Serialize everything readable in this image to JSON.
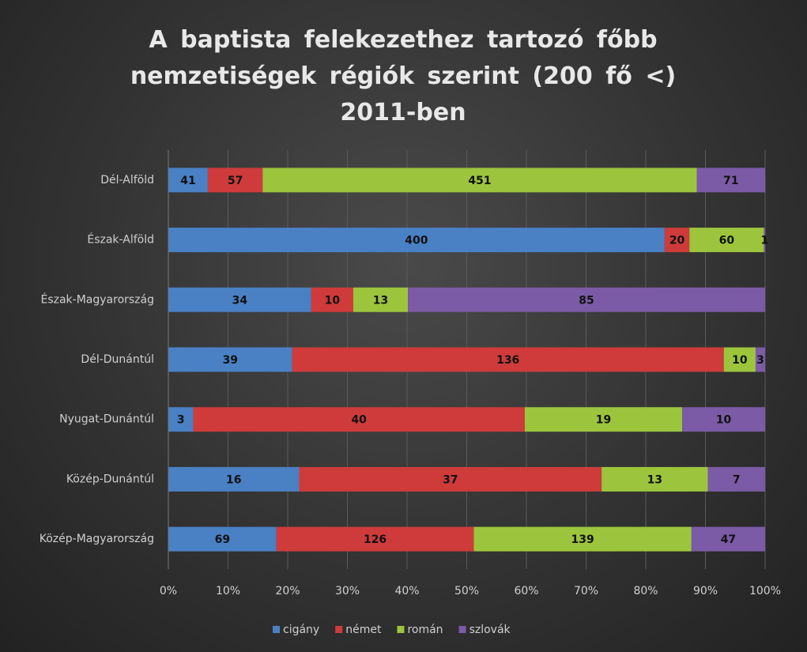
{
  "chart_data": {
    "type": "bar",
    "orientation": "horizontal",
    "stacking": "percent",
    "title": "A baptista felekezethez tartozó főbb nemzetiségek régiók szerint (200 fő <) 2011-ben",
    "categories": [
      "Dél-Alföld",
      "Észak-Alföld",
      "Észak-Magyarország",
      "Dél-Dunántúl",
      "Nyugat-Dunántúl",
      "Közép-Dunántúl",
      "Közép-Magyarország"
    ],
    "series": [
      {
        "name": "cigány",
        "color": "#4a80c4",
        "values": [
          41,
          400,
          34,
          39,
          3,
          16,
          69
        ]
      },
      {
        "name": "német",
        "color": "#cf3b3b",
        "values": [
          57,
          20,
          10,
          136,
          40,
          37,
          126
        ]
      },
      {
        "name": "román",
        "color": "#9cc53d",
        "values": [
          451,
          60,
          13,
          10,
          19,
          13,
          139
        ]
      },
      {
        "name": "szlovák",
        "color": "#7b5ba6",
        "values": [
          71,
          1,
          85,
          3,
          10,
          7,
          47
        ]
      }
    ],
    "xlim": [
      0,
      100
    ],
    "xticks": [
      {
        "value": 0,
        "label": "0%"
      },
      {
        "value": 10,
        "label": "10%"
      },
      {
        "value": 20,
        "label": "20%"
      },
      {
        "value": 30,
        "label": "30%"
      },
      {
        "value": 40,
        "label": "40%"
      },
      {
        "value": 50,
        "label": "50%"
      },
      {
        "value": 60,
        "label": "60%"
      },
      {
        "value": 70,
        "label": "70%"
      },
      {
        "value": 80,
        "label": "80%"
      },
      {
        "value": 90,
        "label": "90%"
      },
      {
        "value": 100,
        "label": "100%"
      }
    ],
    "grid": true,
    "legend": "bottom"
  }
}
